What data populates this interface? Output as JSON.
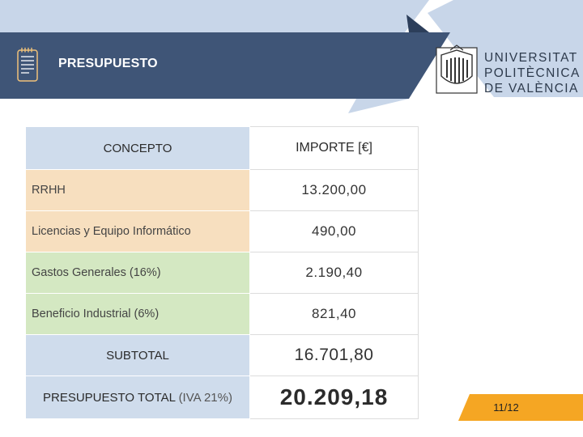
{
  "header": {
    "title": "PRESUPUESTO",
    "icon": "notepad-icon",
    "banner_color": "#3f5577",
    "band_color": "#c8d6e9"
  },
  "logo": {
    "lines": [
      "UNIVERSITAT",
      "POLITÈCNICA",
      "DE VALÈNCIA"
    ]
  },
  "table": {
    "headers": {
      "concept": "CONCEPTO",
      "amount": "IMPORTE [€]"
    },
    "rows": [
      {
        "concept": "RRHH",
        "amount": "13.200,00"
      },
      {
        "concept": "Licencias y Equipo Informático",
        "amount": "490,00"
      },
      {
        "concept": "Gastos Generales (16%)",
        "amount": "2.190,40"
      },
      {
        "concept": "Beneficio Industrial (6%)",
        "amount": "821,40"
      }
    ],
    "subtotal": {
      "label": "SUBTOTAL",
      "amount": "16.701,80"
    },
    "total": {
      "label": "PRESUPUESTO TOTAL",
      "label_suffix": "(IVA 21%)",
      "amount": "20.209,18"
    }
  },
  "footer": {
    "page": "11/12",
    "accent_color": "#f5a623"
  }
}
